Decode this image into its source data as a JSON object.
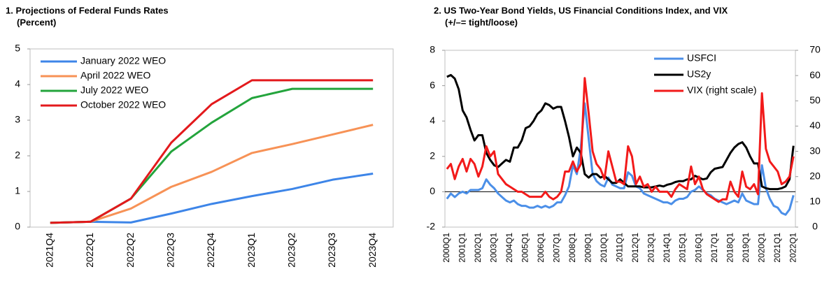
{
  "chart_data": [
    {
      "type": "line",
      "title": "1.  Projections of Federal Funds Rates",
      "subtitle": "(Percent)",
      "categories": [
        "2021Q4",
        "2022Q1",
        "2022Q2",
        "2022Q3",
        "2022Q4",
        "2023Q1",
        "2023Q2",
        "2023Q3",
        "2023Q4"
      ],
      "series": [
        {
          "name": "January 2022 WEO",
          "color": "#3d85e8",
          "values": [
            0.12,
            0.15,
            0.13,
            0.38,
            0.65,
            0.87,
            1.07,
            1.33,
            1.5
          ]
        },
        {
          "name": "April 2022 WEO",
          "color": "#f79256",
          "values": [
            0.12,
            0.15,
            0.52,
            1.13,
            1.55,
            2.08,
            2.33,
            2.6,
            2.87
          ]
        },
        {
          "name": "July 2022 WEO",
          "color": "#23a43c",
          "values": [
            0.12,
            0.15,
            0.8,
            2.12,
            2.93,
            3.62,
            3.88,
            3.88,
            3.88
          ]
        },
        {
          "name": "October 2022 WEO",
          "color": "#e3191c",
          "values": [
            0.12,
            0.15,
            0.8,
            2.37,
            3.45,
            4.12,
            4.12,
            4.12,
            4.12
          ]
        }
      ],
      "ylim": [
        0,
        5
      ],
      "yticks": [
        0,
        1,
        2,
        3,
        4,
        5
      ],
      "grid": false,
      "legend": "upper left"
    },
    {
      "type": "line",
      "title": "2.  US Two-Year Bond Yields, US Financial Conditions Index, and VIX",
      "subtitle": "(+/–= tight/loose)",
      "categories": [
        "2000Q1",
        null,
        null,
        null,
        "2001Q1",
        null,
        null,
        null,
        "2002Q1",
        null,
        null,
        null,
        "2003Q1",
        null,
        null,
        null,
        "2004Q1",
        null,
        null,
        null,
        "2005Q1",
        null,
        null,
        null,
        "2006Q1",
        null,
        null,
        null,
        "2007Q1",
        null,
        null,
        null,
        "2008Q1",
        null,
        null,
        null,
        "2009Q1",
        null,
        null,
        null,
        "2010Q1",
        null,
        null,
        null,
        "2011Q1",
        null,
        null,
        null,
        "2012Q1",
        null,
        null,
        null,
        "2013Q1",
        null,
        null,
        null,
        "2014Q1",
        null,
        null,
        null,
        "2015Q1",
        null,
        null,
        null,
        "2016Q1",
        null,
        null,
        null,
        "2017Q1",
        null,
        null,
        null,
        "2018Q1",
        null,
        null,
        null,
        "2019Q1",
        null,
        null,
        null,
        "2020Q1",
        null,
        null,
        null,
        "2021Q1",
        null,
        null,
        null,
        "2022Q1"
      ],
      "series": [
        {
          "name": "USFCI",
          "color": "#4b8fe8",
          "values": [
            -0.4,
            -0.1,
            -0.3,
            -0.1,
            0.0,
            -0.1,
            0.1,
            0.1,
            0.1,
            0.2,
            0.7,
            0.4,
            0.2,
            -0.1,
            -0.3,
            -0.5,
            -0.6,
            -0.5,
            -0.7,
            -0.8,
            -0.8,
            -0.9,
            -0.9,
            -0.8,
            -0.9,
            -0.8,
            -0.9,
            -0.8,
            -0.6,
            -0.6,
            -0.2,
            0.3,
            1.5,
            1.0,
            2.5,
            5.0,
            3.0,
            1.0,
            0.6,
            0.4,
            0.3,
            0.8,
            0.4,
            0.3,
            0.2,
            0.2,
            1.1,
            0.9,
            0.3,
            0.2,
            -0.1,
            -0.2,
            -0.3,
            -0.4,
            -0.5,
            -0.6,
            -0.6,
            -0.7,
            -0.5,
            -0.4,
            -0.4,
            -0.3,
            0.0,
            0.1,
            0.3,
            0.1,
            -0.1,
            -0.2,
            -0.4,
            -0.5,
            -0.6,
            -0.7,
            -0.6,
            -0.5,
            -0.6,
            -0.1,
            -0.5,
            -0.6,
            -0.7,
            -0.7,
            1.5,
            0.2,
            -0.4,
            -0.8,
            -0.9,
            -1.2,
            -1.3,
            -1.0,
            -0.2
          ]
        },
        {
          "name": "US2y",
          "color": "#000000",
          "values": [
            6.5,
            6.6,
            6.4,
            5.8,
            4.6,
            4.2,
            3.5,
            2.9,
            3.2,
            3.2,
            2.2,
            1.8,
            1.5,
            1.4,
            1.6,
            1.8,
            1.7,
            2.5,
            2.5,
            2.9,
            3.6,
            3.7,
            4.0,
            4.4,
            4.6,
            5.0,
            4.9,
            4.7,
            4.8,
            4.8,
            4.0,
            3.1,
            2.0,
            2.5,
            2.2,
            1.0,
            0.8,
            1.0,
            1.0,
            0.8,
            0.9,
            0.7,
            0.5,
            0.5,
            0.7,
            0.5,
            0.3,
            0.3,
            0.3,
            0.3,
            0.25,
            0.25,
            0.25,
            0.3,
            0.35,
            0.3,
            0.4,
            0.45,
            0.55,
            0.6,
            0.6,
            0.7,
            0.7,
            0.9,
            0.8,
            0.7,
            0.75,
            1.1,
            1.3,
            1.35,
            1.4,
            1.8,
            2.2,
            2.5,
            2.7,
            2.8,
            2.5,
            2.0,
            1.6,
            1.6,
            0.3,
            0.2,
            0.15,
            0.15,
            0.15,
            0.2,
            0.3,
            0.7,
            2.6
          ]
        },
        {
          "name": "VIX (right scale)",
          "color": "#f21a1a",
          "axis": "y2",
          "values": [
            23,
            25,
            19,
            24,
            27,
            22,
            27,
            25,
            20,
            24,
            32,
            28,
            30,
            21,
            19,
            17,
            16,
            15,
            14,
            14,
            13,
            12,
            12,
            12,
            12,
            14,
            12,
            11,
            12,
            14,
            22,
            22,
            26,
            22,
            25,
            59,
            45,
            30,
            25,
            23,
            19,
            30,
            24,
            18,
            18,
            17,
            32,
            28,
            17,
            20,
            16,
            17,
            14,
            16,
            14,
            14,
            14,
            12,
            15,
            17,
            16,
            15,
            24,
            17,
            20,
            15,
            13,
            12,
            11,
            10,
            11,
            11,
            18,
            14,
            12,
            22,
            16,
            15,
            17,
            13,
            53,
            31,
            26,
            24,
            22,
            17,
            18,
            20,
            28
          ]
        }
      ],
      "ylim": [
        -2,
        8
      ],
      "yticks": [
        -2,
        0,
        2,
        4,
        6,
        8
      ],
      "y2lim": [
        0,
        70
      ],
      "y2ticks": [
        0,
        10,
        20,
        30,
        40,
        50,
        60,
        70
      ],
      "grid": false,
      "legend": "upper right"
    }
  ]
}
